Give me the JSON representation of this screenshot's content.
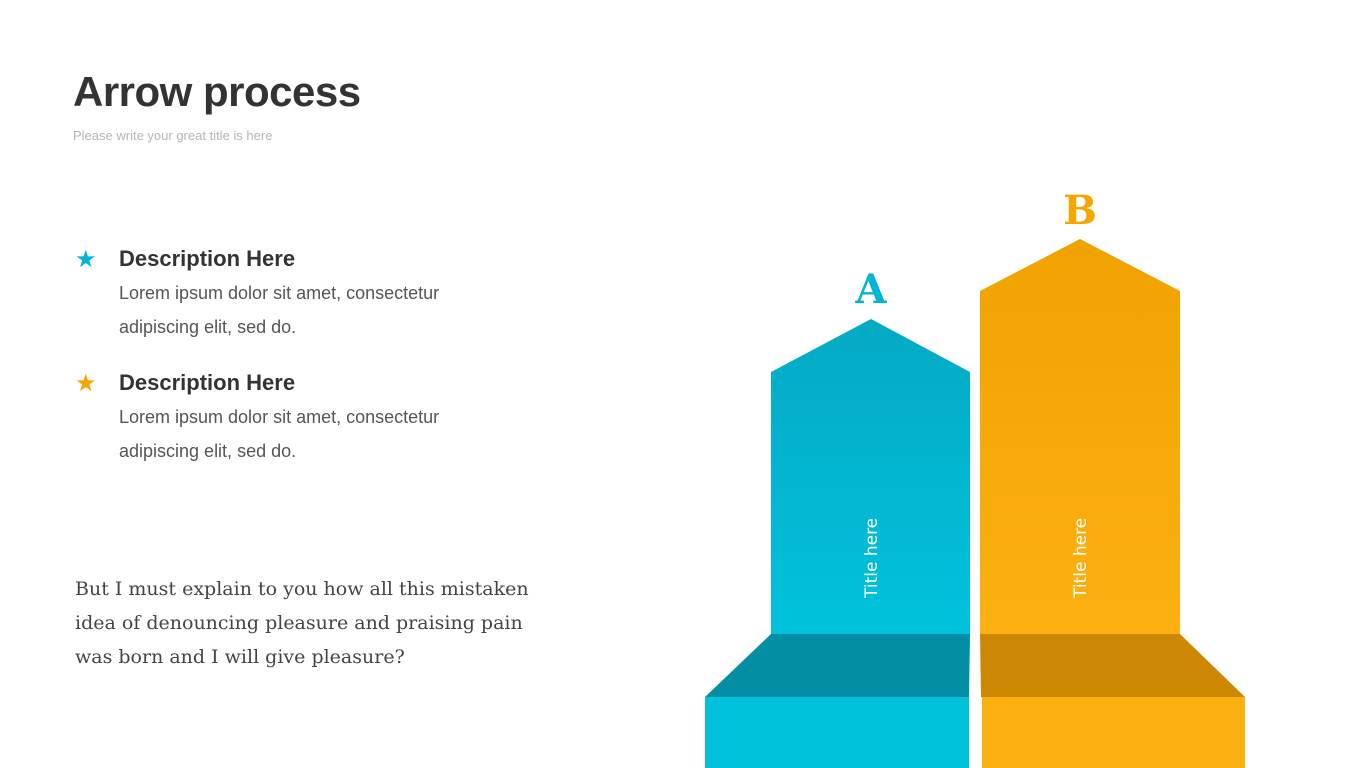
{
  "header": {
    "title": "Arrow process",
    "subtitle": "Please write your great title is here"
  },
  "items": [
    {
      "icon": "star-icon",
      "color": "#00b5d6",
      "heading": "Description Here",
      "text": "Lorem ipsum dolor sit amet, consectetur adipiscing elit, sed do."
    },
    {
      "icon": "star-icon",
      "color": "#f7a600",
      "heading": "Description Here",
      "text": "Lorem ipsum dolor sit amet, consectetur adipiscing elit, sed do."
    }
  ],
  "quote": "But I must explain to you how all this mistaken idea of denouncing pleasure and praising pain was born and I will give pleasure?",
  "arrows": [
    {
      "letter": "A",
      "label": "Title here",
      "color": "#00c2dd",
      "color_top": "#05a9c4",
      "shade": "#028fa4"
    },
    {
      "letter": "B",
      "label": "Title here",
      "color": "#fdb012",
      "color_top": "#f0a200",
      "shade": "#cc8800"
    }
  ]
}
